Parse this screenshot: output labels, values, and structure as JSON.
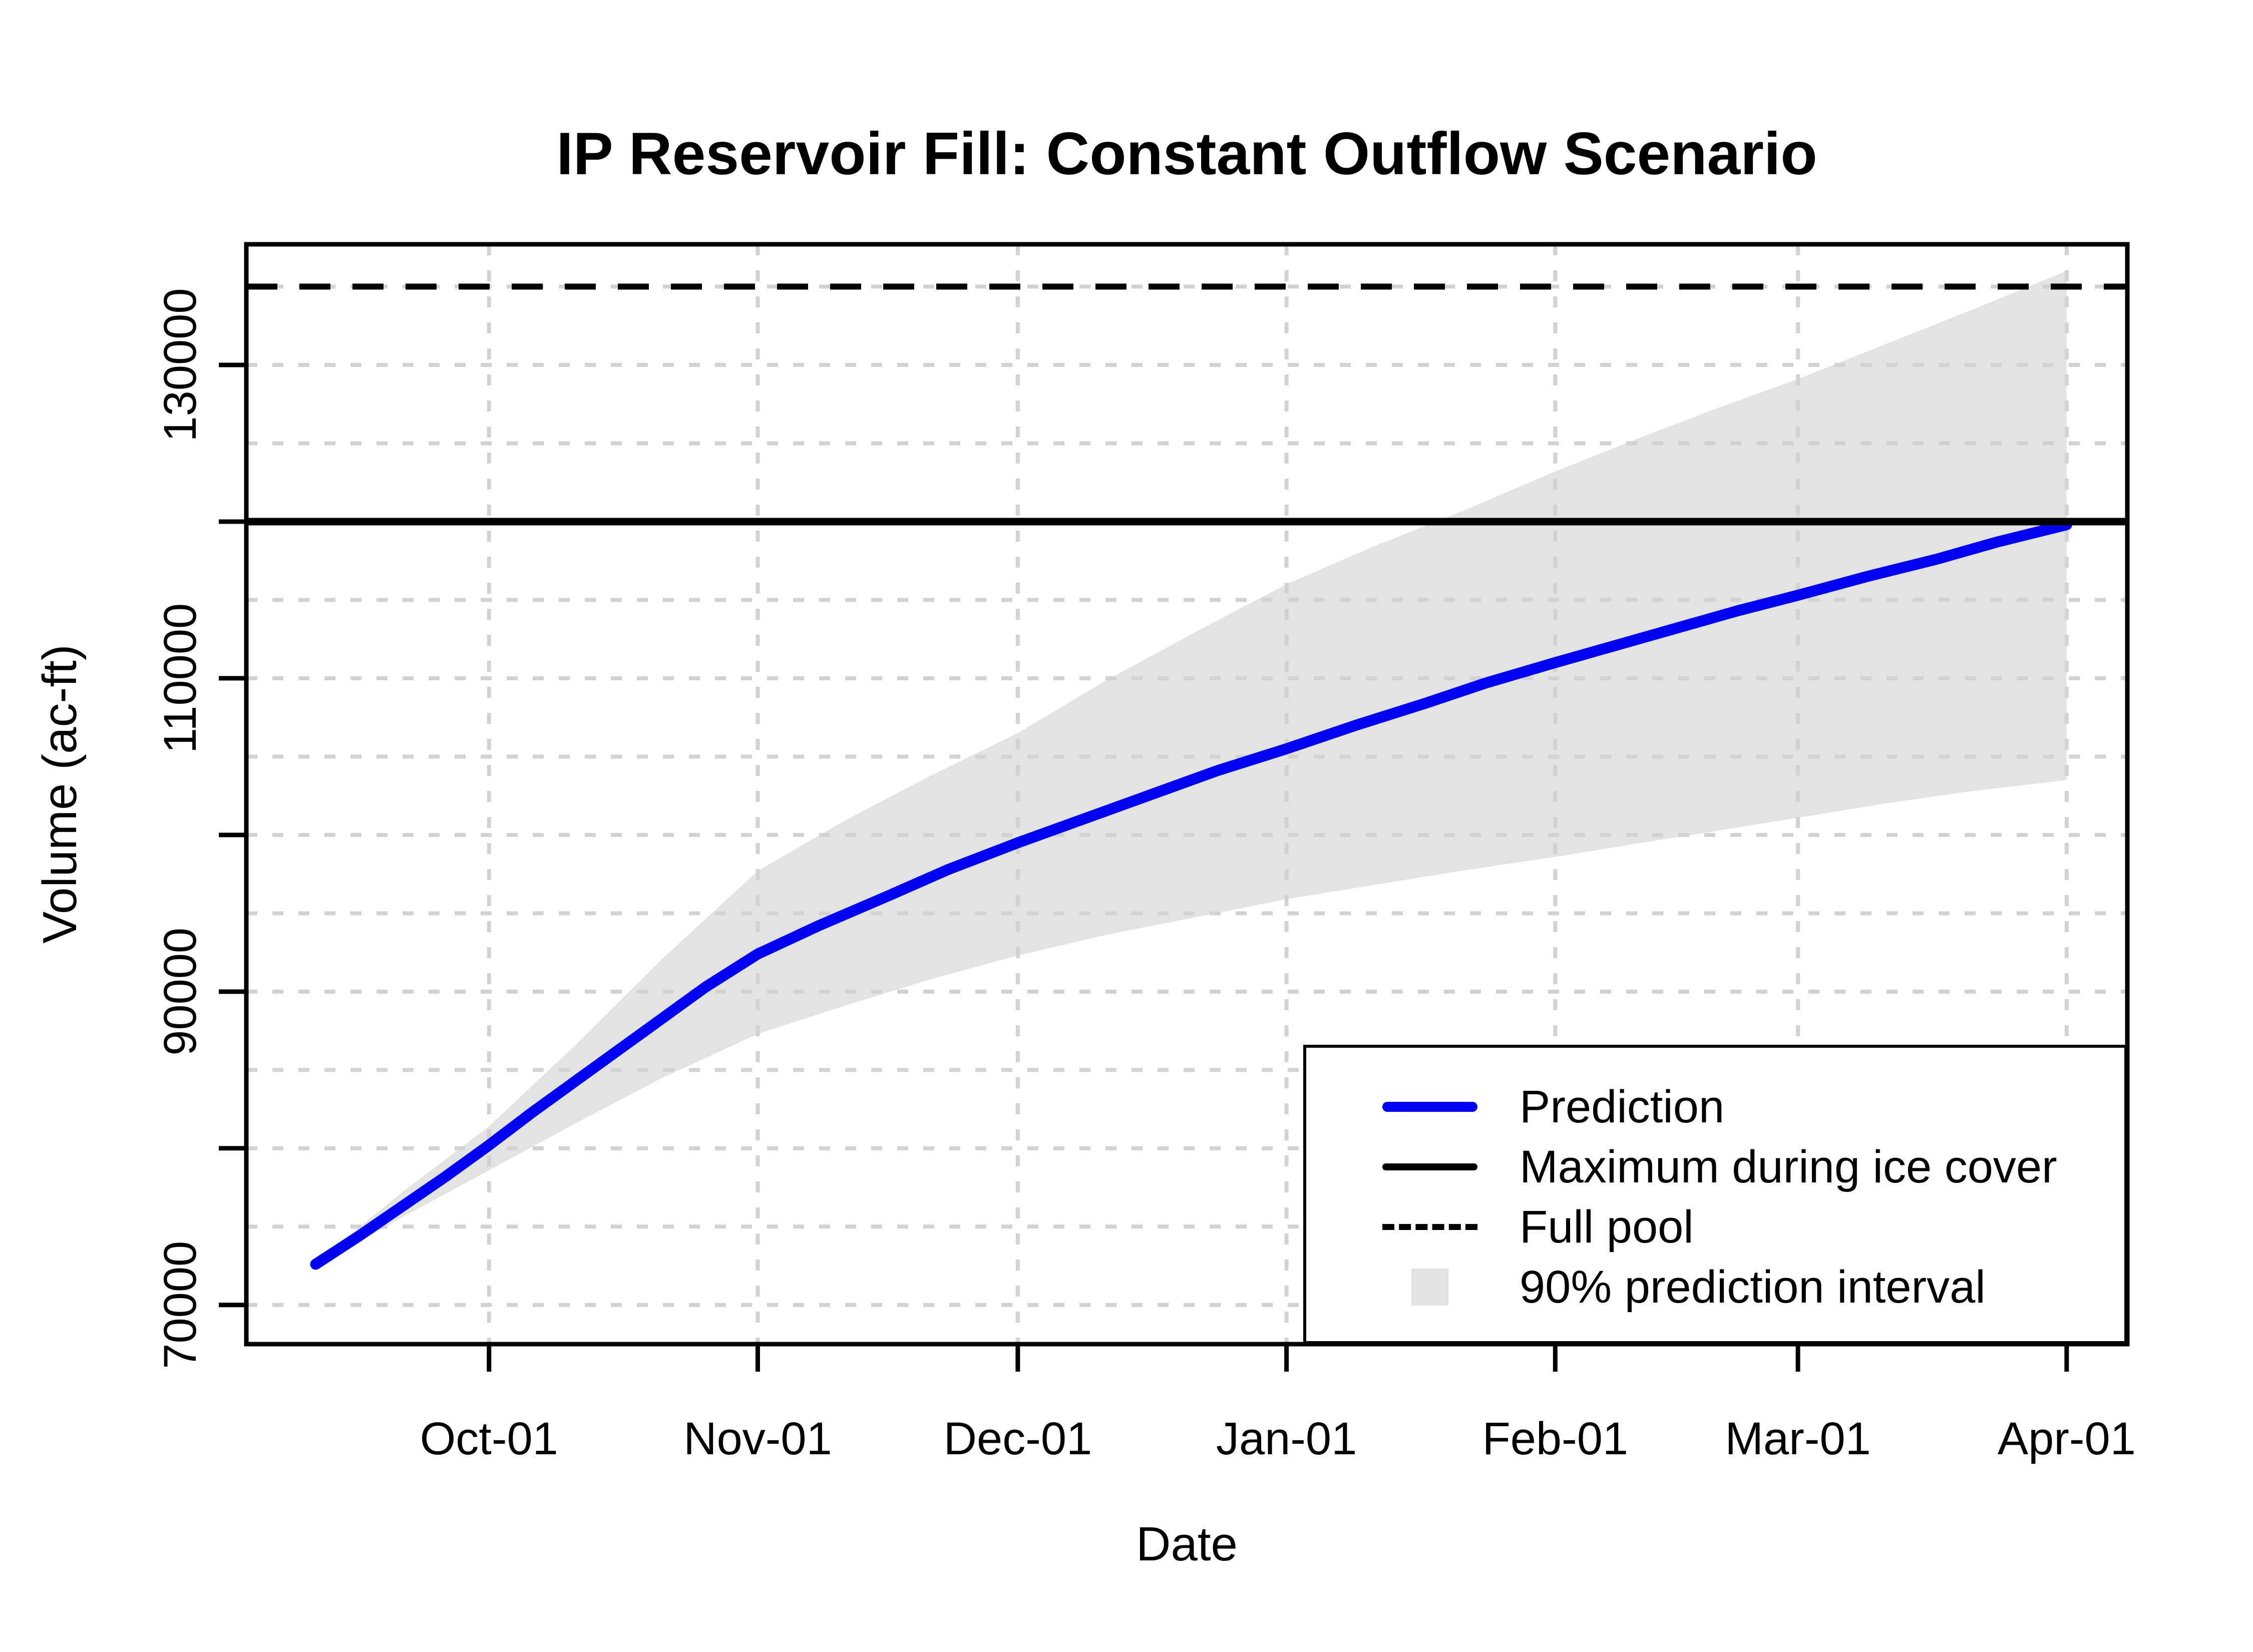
{
  "chart_data": {
    "type": "line",
    "title": "IP Reservoir Fill: Constant Outflow Scenario",
    "xlabel": "Date",
    "ylabel": "Volume (ac-ft)",
    "x_unit": "days since Oct-01",
    "xlim": [
      -28,
      189
    ],
    "ylim": [
      67500,
      137700
    ],
    "grid": "on",
    "x_ticks": [
      {
        "label": "Oct-01",
        "d": 0
      },
      {
        "label": "Nov-01",
        "d": 31
      },
      {
        "label": "Dec-01",
        "d": 61
      },
      {
        "label": "Jan-01",
        "d": 92
      },
      {
        "label": "Feb-01",
        "d": 123
      },
      {
        "label": "Mar-01",
        "d": 151
      },
      {
        "label": "Apr-01",
        "d": 182
      }
    ],
    "y_ticks": [
      70000,
      80000,
      90000,
      100000,
      110000,
      120000,
      130000
    ],
    "y_tick_labels": [
      "70000",
      "",
      "90000",
      "",
      "110000",
      "",
      "130000"
    ],
    "y_grid_values": [
      70000,
      75000,
      80000,
      85000,
      90000,
      95000,
      100000,
      105000,
      110000,
      115000,
      120000,
      125000,
      130000,
      135000
    ],
    "series": [
      {
        "name": "Prediction",
        "color": "#0202f0",
        "x": [
          -20,
          -15,
          -10,
          -5,
          0,
          5,
          10,
          15,
          20,
          25,
          31,
          38,
          46,
          53,
          61,
          69,
          77,
          84,
          92,
          100,
          108,
          115,
          123,
          130,
          137,
          144,
          151,
          159,
          167,
          174,
          182
        ],
        "y": [
          72600,
          74400,
          76300,
          78200,
          80200,
          82300,
          84300,
          86300,
          88300,
          90300,
          92400,
          94200,
          96100,
          97800,
          99500,
          101100,
          102700,
          104100,
          105500,
          107000,
          108400,
          109700,
          111000,
          112100,
          113200,
          114300,
          115300,
          116500,
          117600,
          118700,
          119800
        ]
      }
    ],
    "band": {
      "name": "90% prediction interval",
      "color": "#e3e3e3",
      "x": [
        -20,
        -10,
        0,
        10,
        20,
        31,
        41,
        51,
        61,
        71,
        82,
        92,
        102,
        112,
        123,
        133,
        142,
        151,
        161,
        171,
        182
      ],
      "upper": [
        72700,
        77200,
        81400,
        86600,
        92100,
        97700,
        100900,
        103800,
        106500,
        109800,
        113100,
        116000,
        118400,
        120600,
        123200,
        125400,
        127300,
        129100,
        131300,
        133500,
        136000
      ],
      "lower": [
        72500,
        75600,
        78600,
        81600,
        84500,
        87300,
        89100,
        90800,
        92300,
        93600,
        94800,
        95900,
        96800,
        97700,
        98600,
        99500,
        100300,
        101100,
        102000,
        102800,
        103500
      ]
    },
    "reference_lines": [
      {
        "name": "Maximum during ice cover",
        "value": 120000,
        "style": "solid",
        "color": "#000000"
      },
      {
        "name": "Full pool",
        "value": 135000,
        "style": "dashed",
        "color": "#000000"
      }
    ],
    "legend": {
      "position": "bottomright",
      "items": [
        {
          "label": "Prediction",
          "swatch": "blue-line"
        },
        {
          "label": "Maximum during ice cover",
          "swatch": "black-line"
        },
        {
          "label": "Full pool",
          "swatch": "dashed-line"
        },
        {
          "label": "90% prediction interval",
          "swatch": "gray-box"
        }
      ]
    },
    "colors": {
      "prediction": "#0202f0",
      "band": "#e3e3e3",
      "grid": "#d2d2d2",
      "axis": "#000000",
      "background": "#ffffff"
    }
  }
}
